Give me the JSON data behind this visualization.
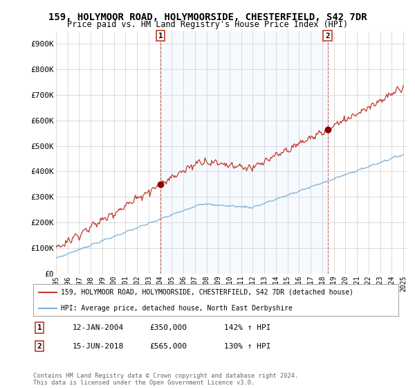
{
  "title": "159, HOLYMOOR ROAD, HOLYMOORSIDE, CHESTERFIELD, S42 7DR",
  "subtitle": "Price paid vs. HM Land Registry's House Price Index (HPI)",
  "ylim": [
    0,
    950000
  ],
  "yticks": [
    0,
    100000,
    200000,
    300000,
    400000,
    500000,
    600000,
    700000,
    800000,
    900000
  ],
  "ytick_labels": [
    "£0",
    "£100K",
    "£200K",
    "£300K",
    "£400K",
    "£500K",
    "£600K",
    "£700K",
    "£800K",
    "£900K"
  ],
  "hpi_color": "#7bafd4",
  "price_color": "#c0392b",
  "sale_dot_color": "#8b0000",
  "shade_color": "#ddeeff",
  "sale1_date": 2004.04,
  "sale1_price": 350000,
  "sale1_label": "1",
  "sale2_date": 2018.46,
  "sale2_price": 565000,
  "sale2_label": "2",
  "legend_label1": "159, HOLYMOOR ROAD, HOLYMOORSIDE, CHESTERFIELD, S42 7DR (detached house)",
  "legend_label2": "HPI: Average price, detached house, North East Derbyshire",
  "table_row1": [
    "1",
    "12-JAN-2004",
    "£350,000",
    "142% ↑ HPI"
  ],
  "table_row2": [
    "2",
    "15-JUN-2018",
    "£565,000",
    "130% ↑ HPI"
  ],
  "footer": "Contains HM Land Registry data © Crown copyright and database right 2024.\nThis data is licensed under the Open Government Licence v3.0.",
  "background_color": "#ffffff",
  "grid_color": "#cccccc"
}
